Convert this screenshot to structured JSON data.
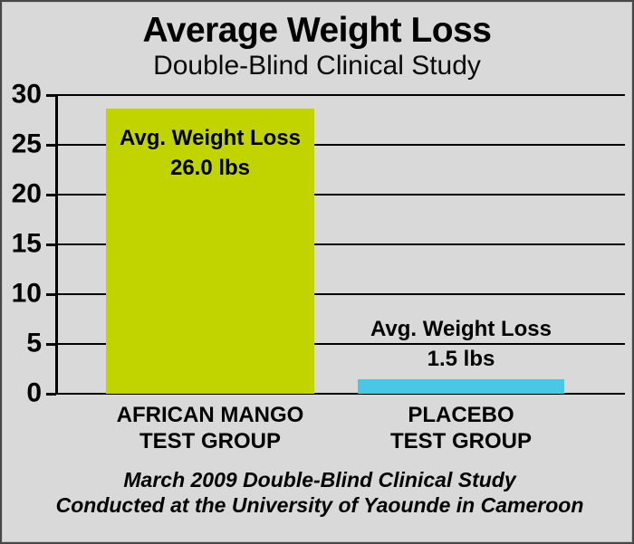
{
  "chart_data": {
    "type": "bar",
    "title": "Average Weight Loss",
    "subtitle": "Double-Blind Clinical Study",
    "categories": [
      "AFRICAN MANGO TEST GROUP",
      "PLACEBO TEST GROUP"
    ],
    "category_lines": [
      [
        "AFRICAN MANGO",
        "TEST GROUP"
      ],
      [
        "PLACEBO",
        "TEST GROUP"
      ]
    ],
    "values": [
      26.0,
      1.5
    ],
    "visual_values": [
      28.6,
      1.5
    ],
    "bar_labels": [
      [
        "Avg. Weight Loss",
        "26.0 lbs"
      ],
      [
        "Avg. Weight Loss",
        "1.5 lbs"
      ]
    ],
    "bar_colors": [
      "#c1d400",
      "#4ac6e6"
    ],
    "xlabel": "",
    "ylabel": "",
    "ylim": [
      0,
      30
    ],
    "yticks": [
      0,
      5,
      10,
      15,
      20,
      25,
      30
    ],
    "grid": true,
    "legend": false,
    "units": "lbs"
  },
  "footer": {
    "line1": "March 2009 Double-Blind Clinical Study",
    "line2": "Conducted at the University of Yaounde in Cameroon"
  },
  "colors": {
    "background": "#d8d9d8",
    "grid": "#000000",
    "text": "#000000"
  }
}
